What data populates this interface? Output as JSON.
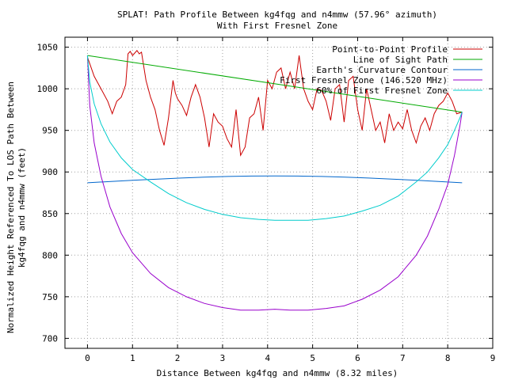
{
  "chart_data": {
    "type": "line",
    "title_line1": "SPLAT! Path Profile Between kg4fqg and n4mmw (57.96° azimuth)",
    "title_line2": "With First Fresnel Zone",
    "xlabel": "Distance Between kg4fqg and n4mmw (8.32 miles)",
    "ylabel_line1": "Normalized Height Referenced To LOS Path Between",
    "ylabel_line2": "kg4fqg and n4mmw (feet)",
    "xlim": [
      -0.5,
      9
    ],
    "ylim": [
      688,
      1062
    ],
    "x_ticks": [
      0,
      1,
      2,
      3,
      4,
      5,
      6,
      7,
      8,
      9
    ],
    "y_ticks": [
      700,
      750,
      800,
      850,
      900,
      950,
      1000,
      1050
    ],
    "grid": true,
    "legend_position": "top-right",
    "series": [
      {
        "name": "Point-to-Point Profile",
        "color": "#cc0000",
        "x": [
          0,
          0.15,
          0.3,
          0.45,
          0.55,
          0.65,
          0.75,
          0.85,
          0.9,
          0.95,
          1.0,
          1.05,
          1.1,
          1.15,
          1.2,
          1.3,
          1.4,
          1.5,
          1.6,
          1.7,
          1.8,
          1.9,
          1.95,
          2.0,
          2.1,
          2.2,
          2.3,
          2.4,
          2.5,
          2.6,
          2.7,
          2.8,
          2.9,
          3.0,
          3.1,
          3.2,
          3.3,
          3.4,
          3.5,
          3.6,
          3.7,
          3.8,
          3.9,
          4.0,
          4.1,
          4.2,
          4.3,
          4.4,
          4.5,
          4.6,
          4.7,
          4.8,
          4.9,
          5.0,
          5.1,
          5.2,
          5.3,
          5.4,
          5.5,
          5.6,
          5.7,
          5.8,
          5.9,
          6.0,
          6.1,
          6.2,
          6.3,
          6.4,
          6.5,
          6.6,
          6.7,
          6.8,
          6.9,
          7.0,
          7.1,
          7.2,
          7.3,
          7.4,
          7.5,
          7.6,
          7.7,
          7.8,
          7.9,
          8.0,
          8.1,
          8.2,
          8.32
        ],
        "y": [
          1038,
          1015,
          1000,
          985,
          970,
          985,
          990,
          1005,
          1042,
          1045,
          1040,
          1043,
          1046,
          1042,
          1044,
          1010,
          990,
          975,
          950,
          932,
          965,
          1010,
          995,
          988,
          980,
          968,
          990,
          1005,
          990,
          965,
          930,
          970,
          960,
          955,
          940,
          930,
          975,
          920,
          930,
          965,
          970,
          990,
          950,
          1010,
          1000,
          1020,
          1025,
          1000,
          1020,
          1000,
          1040,
          1000,
          985,
          975,
          1000,
          998,
          985,
          962,
          1000,
          1005,
          960,
          1010,
          1015,
          975,
          950,
          1000,
          975,
          950,
          960,
          935,
          970,
          950,
          960,
          952,
          975,
          950,
          935,
          955,
          965,
          950,
          970,
          980,
          985,
          995,
          985,
          970,
          972
        ]
      },
      {
        "name": "Line of Sight Path",
        "color": "#00aa00",
        "x": [
          0,
          8.32
        ],
        "y": [
          1040,
          972
        ]
      },
      {
        "name": "Earth's Curvature Contour",
        "color": "#0066cc",
        "x": [
          0,
          0.52,
          1.04,
          1.56,
          2.08,
          2.6,
          3.12,
          3.64,
          4.16,
          4.68,
          5.2,
          5.72,
          6.24,
          6.76,
          7.28,
          7.8,
          8.32
        ],
        "y": [
          887,
          888.6,
          890.1,
          891.5,
          892.7,
          893.8,
          894.6,
          895.1,
          895.3,
          895.1,
          894.6,
          893.8,
          892.7,
          891.5,
          890.1,
          888.6,
          887
        ]
      },
      {
        "name": "First Fresnel Zone (146.520 MHz)",
        "color": "#9900cc",
        "x": [
          0,
          0.05,
          0.15,
          0.3,
          0.5,
          0.75,
          1.0,
          1.4,
          1.8,
          2.2,
          2.6,
          3.0,
          3.4,
          3.8,
          4.16,
          4.5,
          4.9,
          5.3,
          5.7,
          6.1,
          6.5,
          6.9,
          7.3,
          7.55,
          7.8,
          8.0,
          8.15,
          8.27,
          8.32
        ],
        "y": [
          1040,
          980,
          935,
          895,
          858,
          826,
          803,
          778,
          761,
          750,
          742,
          737,
          734,
          734,
          735,
          734,
          734,
          736,
          739,
          747,
          758,
          774,
          800,
          823,
          855,
          885,
          920,
          955,
          972
        ]
      },
      {
        "name": "60% of First Fresnel Zone",
        "color": "#00cccc",
        "x": [
          0,
          0.05,
          0.15,
          0.3,
          0.5,
          0.75,
          1.0,
          1.4,
          1.8,
          2.2,
          2.6,
          3.0,
          3.4,
          3.8,
          4.16,
          4.5,
          4.9,
          5.3,
          5.7,
          6.1,
          6.5,
          6.9,
          7.3,
          7.55,
          7.8,
          8.0,
          8.15,
          8.27,
          8.32
        ],
        "y": [
          1040,
          1008,
          982,
          958,
          936,
          917,
          903,
          888,
          874,
          863,
          855,
          849,
          845,
          843,
          842,
          842,
          842,
          844,
          847,
          853,
          860,
          871,
          888,
          900,
          917,
          933,
          950,
          965,
          972
        ]
      }
    ]
  }
}
